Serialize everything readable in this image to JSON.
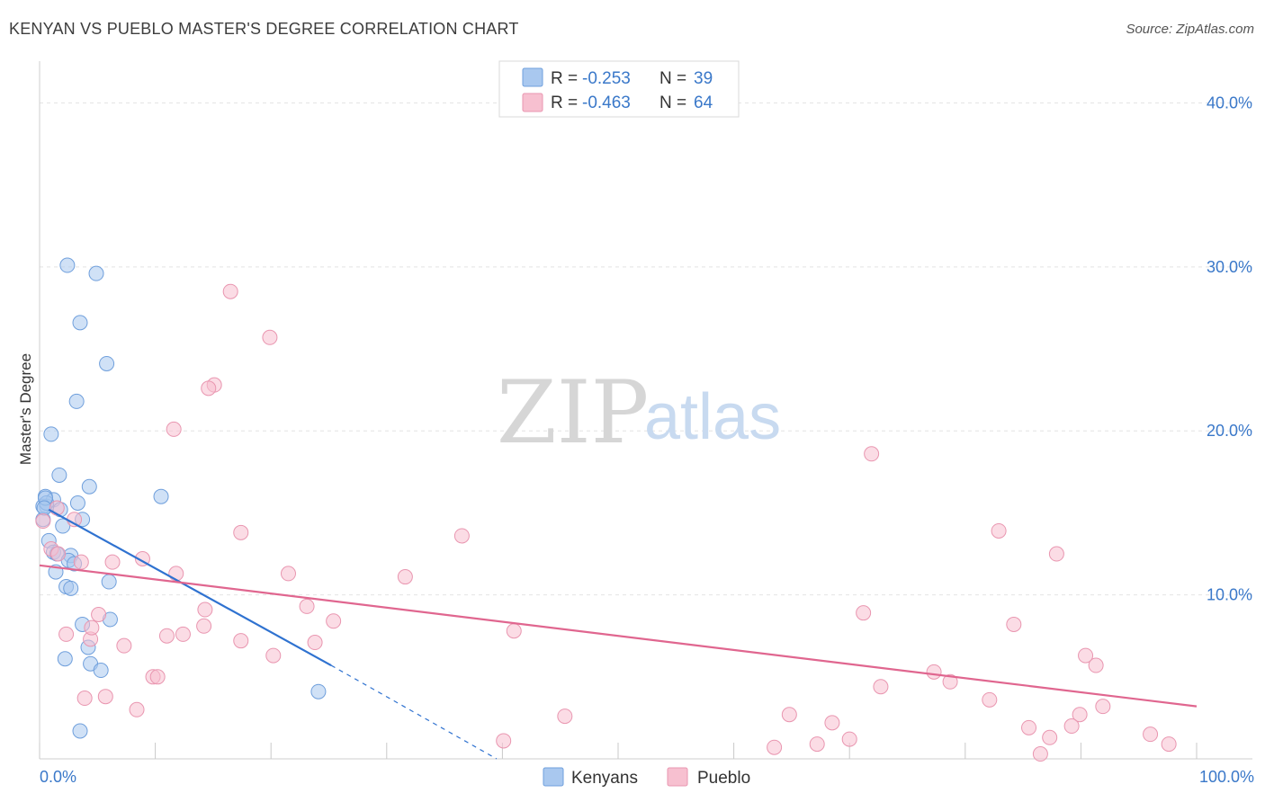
{
  "header": {
    "title": "KENYAN VS PUEBLO MASTER'S DEGREE CORRELATION CHART",
    "source": "Source: ZipAtlas.com"
  },
  "watermark": {
    "zip": "ZIP",
    "atlas": "atlas"
  },
  "legend": {
    "rows": [
      {
        "r_label": "R =",
        "r_value": "-0.253",
        "n_label": "N =",
        "n_value": "39",
        "color": "#a9c8ef",
        "stroke": "#6f9fdc"
      },
      {
        "r_label": "R =",
        "r_value": "-0.463",
        "n_label": "N =",
        "n_value": "64",
        "color": "#f7c0d0",
        "stroke": "#e996b0"
      }
    ]
  },
  "bottom_legend": {
    "items": [
      "Kenyans",
      "Pueblo"
    ]
  },
  "chart_data": {
    "type": "scatter",
    "title": "KENYAN VS PUEBLO MASTER'S DEGREE CORRELATION CHART",
    "xlabel": "",
    "ylabel": "Master's Degree",
    "xlim": [
      0,
      100
    ],
    "ylim": [
      0,
      42
    ],
    "x_tick_labels": {
      "min": "0.0%",
      "max": "100.0%"
    },
    "y_ticks": [
      {
        "value": 10,
        "label": "10.0%"
      },
      {
        "value": 20,
        "label": "20.0%"
      },
      {
        "value": 30,
        "label": "30.0%"
      },
      {
        "value": 40,
        "label": "40.0%"
      }
    ],
    "series": [
      {
        "name": "Kenyans",
        "color": "#a9c8ef",
        "stroke": "#6f9fdc",
        "trend": {
          "x0": 0.8,
          "y0": 15.2,
          "x1": 25.2,
          "y1": 5.7,
          "dash_to_x": 39.5,
          "dash_to_y": 0.0,
          "color": "#2f72d0"
        },
        "points": [
          [
            2.4,
            30.1
          ],
          [
            4.9,
            29.6
          ],
          [
            3.5,
            26.6
          ],
          [
            5.8,
            24.1
          ],
          [
            3.2,
            21.8
          ],
          [
            1.0,
            19.8
          ],
          [
            1.7,
            17.3
          ],
          [
            4.3,
            16.6
          ],
          [
            10.5,
            16.0
          ],
          [
            0.5,
            16.0
          ],
          [
            1.2,
            15.8
          ],
          [
            3.3,
            15.6
          ],
          [
            0.6,
            15.4
          ],
          [
            1.8,
            15.2
          ],
          [
            2.0,
            14.2
          ],
          [
            3.7,
            14.6
          ],
          [
            0.8,
            13.3
          ],
          [
            1.2,
            12.6
          ],
          [
            2.7,
            12.4
          ],
          [
            1.5,
            12.5
          ],
          [
            2.5,
            12.1
          ],
          [
            1.4,
            11.4
          ],
          [
            3.0,
            11.9
          ],
          [
            2.3,
            10.5
          ],
          [
            2.7,
            10.4
          ],
          [
            6.0,
            10.8
          ],
          [
            6.1,
            8.5
          ],
          [
            3.7,
            8.2
          ],
          [
            4.2,
            6.8
          ],
          [
            2.2,
            6.1
          ],
          [
            4.4,
            5.8
          ],
          [
            5.3,
            5.4
          ],
          [
            24.1,
            4.1
          ],
          [
            3.5,
            1.7
          ],
          [
            0.3,
            15.4
          ],
          [
            0.6,
            15.6
          ],
          [
            0.3,
            14.6
          ],
          [
            0.5,
            15.9
          ],
          [
            0.4,
            15.3
          ]
        ]
      },
      {
        "name": "Pueblo",
        "color": "#f7c0d0",
        "stroke": "#e996b0",
        "trend": {
          "x0": 0.0,
          "y0": 11.8,
          "x1": 100.0,
          "y1": 3.2,
          "color": "#e0668f"
        },
        "points": [
          [
            16.5,
            28.5
          ],
          [
            19.9,
            25.7
          ],
          [
            15.1,
            22.8
          ],
          [
            14.6,
            22.6
          ],
          [
            11.6,
            20.1
          ],
          [
            71.9,
            18.6
          ],
          [
            0.3,
            14.5
          ],
          [
            1.5,
            15.3
          ],
          [
            3.0,
            14.6
          ],
          [
            17.4,
            13.8
          ],
          [
            36.5,
            13.6
          ],
          [
            82.9,
            13.9
          ],
          [
            1.0,
            12.8
          ],
          [
            1.6,
            12.5
          ],
          [
            3.6,
            12.0
          ],
          [
            6.3,
            12.0
          ],
          [
            8.9,
            12.2
          ],
          [
            11.8,
            11.3
          ],
          [
            21.5,
            11.3
          ],
          [
            31.6,
            11.1
          ],
          [
            87.9,
            12.5
          ],
          [
            23.1,
            9.3
          ],
          [
            14.3,
            9.1
          ],
          [
            25.4,
            8.4
          ],
          [
            71.2,
            8.9
          ],
          [
            5.1,
            8.8
          ],
          [
            14.2,
            8.1
          ],
          [
            4.4,
            7.3
          ],
          [
            23.8,
            7.1
          ],
          [
            41.0,
            7.8
          ],
          [
            84.2,
            8.2
          ],
          [
            2.3,
            7.6
          ],
          [
            4.5,
            8.0
          ],
          [
            11.0,
            7.5
          ],
          [
            12.4,
            7.6
          ],
          [
            7.3,
            6.9
          ],
          [
            17.4,
            7.2
          ],
          [
            20.2,
            6.3
          ],
          [
            90.4,
            6.3
          ],
          [
            91.3,
            5.7
          ],
          [
            9.8,
            5.0
          ],
          [
            10.2,
            5.0
          ],
          [
            77.3,
            5.3
          ],
          [
            78.7,
            4.7
          ],
          [
            72.7,
            4.4
          ],
          [
            3.9,
            3.7
          ],
          [
            5.7,
            3.8
          ],
          [
            82.1,
            3.6
          ],
          [
            8.4,
            3.0
          ],
          [
            91.9,
            3.2
          ],
          [
            45.4,
            2.6
          ],
          [
            64.8,
            2.7
          ],
          [
            89.9,
            2.7
          ],
          [
            68.5,
            2.2
          ],
          [
            89.2,
            2.0
          ],
          [
            85.5,
            1.9
          ],
          [
            40.1,
            1.1
          ],
          [
            70.0,
            1.2
          ],
          [
            87.3,
            1.3
          ],
          [
            96.0,
            1.5
          ],
          [
            67.2,
            0.9
          ],
          [
            63.5,
            0.7
          ],
          [
            97.6,
            0.9
          ],
          [
            86.5,
            0.3
          ]
        ]
      }
    ]
  }
}
